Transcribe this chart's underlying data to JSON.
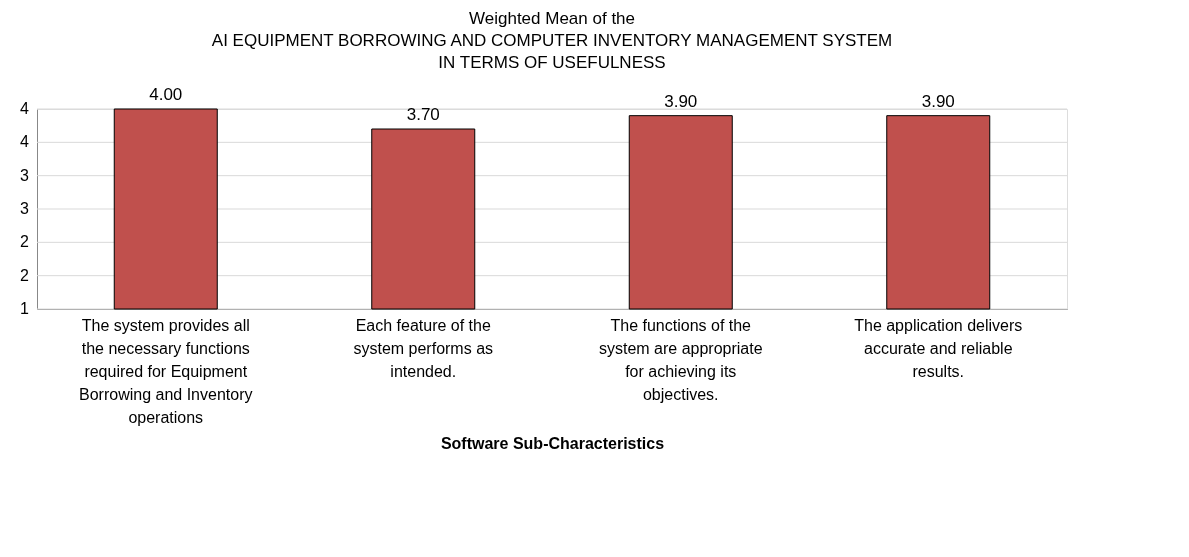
{
  "chart_data": {
    "type": "bar",
    "title": [
      "Weighted Mean of the",
      "AI EQUIPMENT BORROWING AND COMPUTER INVENTORY MANAGEMENT SYSTEM",
      "IN TERMS  OF USEFULNESS"
    ],
    "xlabel": "Software Sub-Characteristics",
    "categories": [
      "The system provides all the necessary functions required for Equipment Borrowing and Inventory operations",
      "Each feature of the system performs as intended.",
      "The functions of the system are appropriate for achieving its objectives.",
      "The application delivers accurate and reliable results."
    ],
    "values": [
      4.0,
      3.7,
      3.9,
      3.9
    ],
    "value_labels": [
      "4.00",
      "3.70",
      "3.90",
      "3.90"
    ],
    "color": "#c0504d",
    "ylim": [
      1,
      4
    ],
    "yticks": [
      {
        "value": 1,
        "label": "1"
      },
      {
        "value": 1.5,
        "label": "2"
      },
      {
        "value": 2,
        "label": "2"
      },
      {
        "value": 2.5,
        "label": "3"
      },
      {
        "value": 3,
        "label": "3"
      },
      {
        "value": 3.5,
        "label": "4"
      },
      {
        "value": 4,
        "label": "4"
      }
    ],
    "grid": "y"
  }
}
